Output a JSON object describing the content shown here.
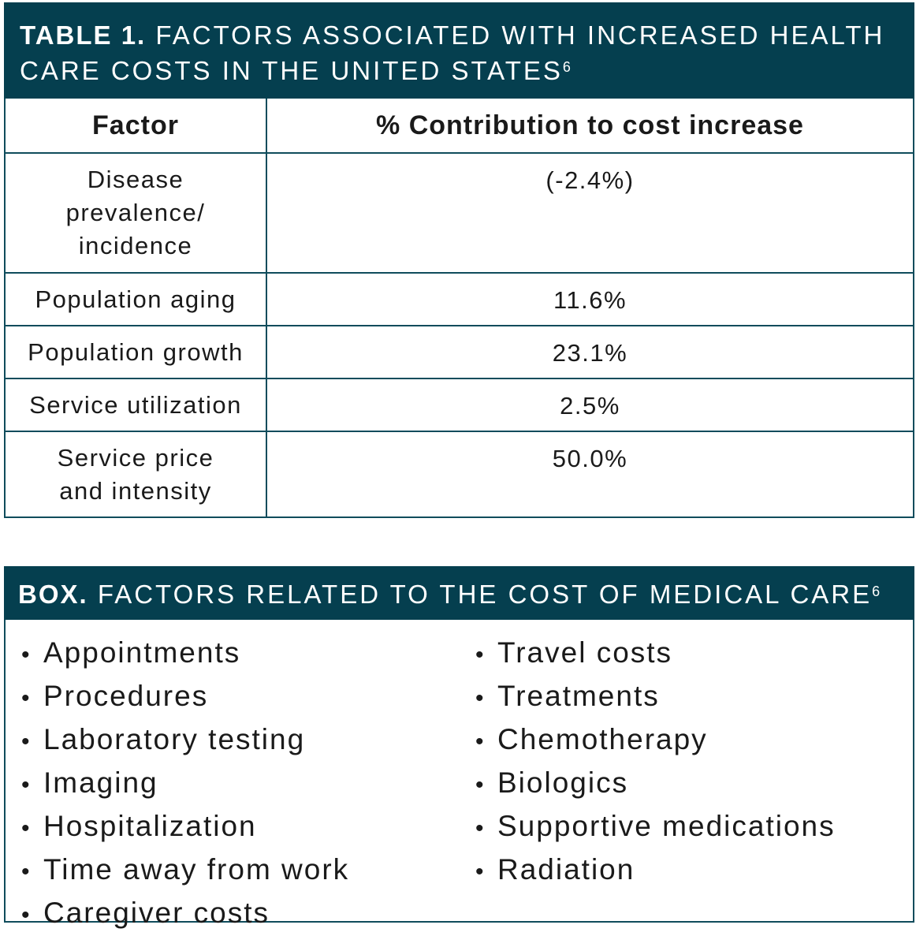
{
  "table": {
    "lead": "TABLE 1.",
    "title": "FACTORS ASSOCIATED WITH INCREASED HEALTH CARE COSTS IN THE UNITED STATES",
    "title_ref": "6",
    "columns": [
      "Factor",
      "% Contribution to cost increase"
    ],
    "rows": [
      {
        "factor": "Disease prevalence/ incidence",
        "value": "(-2.4%)"
      },
      {
        "factor": "Population aging",
        "value": "11.6%"
      },
      {
        "factor": "Population growth",
        "value": "23.1%"
      },
      {
        "factor": "Service utilization",
        "value": "2.5%"
      },
      {
        "factor": "Service price and intensity",
        "value": "50.0%"
      }
    ]
  },
  "box": {
    "lead": "BOX.",
    "title": "FACTORS RELATED TO THE COST OF MEDICAL CARE",
    "title_ref": "6",
    "bullet": "•",
    "left_items": [
      "Appointments",
      "Procedures",
      "Laboratory testing",
      "Imaging",
      "Hospitalization",
      "Time away from work",
      "Caregiver costs"
    ],
    "right_items": [
      "Travel costs",
      "Treatments",
      "Chemotherapy",
      "Biologics",
      "Supportive medications",
      "Radiation"
    ]
  },
  "colors": {
    "header_bg": "#053f4f",
    "border": "#0f4c5c"
  }
}
